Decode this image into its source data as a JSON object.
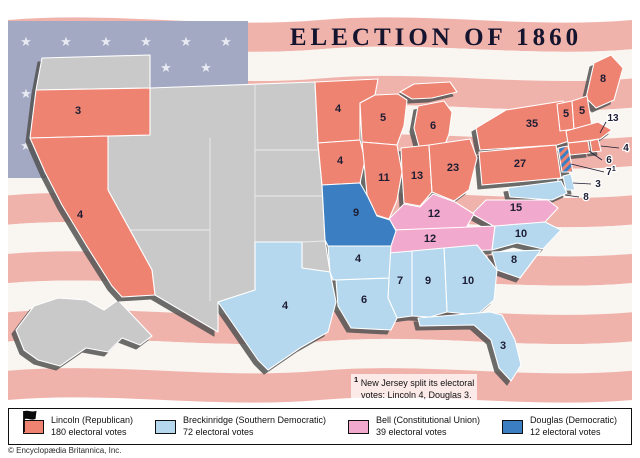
{
  "title": "ELECTION OF 1860",
  "colors": {
    "lincoln": "#ee8372",
    "breckinridge": "#b5d8ef",
    "bell": "#f2a9ce",
    "douglas": "#3b7fc2",
    "territory": "#c9c9c9",
    "flag_red": "#f0b3ab",
    "flag_white": "#f9f5f0",
    "canton": "#a3a9c3",
    "star": "#e9ebf3"
  },
  "map": {
    "states": {
      "oregon": {
        "party": "lincoln",
        "votes": 3
      },
      "california": {
        "party": "lincoln",
        "votes": 4
      },
      "minnesota": {
        "party": "lincoln",
        "votes": 4
      },
      "wisconsin": {
        "party": "lincoln",
        "votes": 5
      },
      "michigan": {
        "party": "lincoln",
        "votes": 6
      },
      "iowa": {
        "party": "lincoln",
        "votes": 4
      },
      "illinois": {
        "party": "lincoln",
        "votes": 11
      },
      "indiana": {
        "party": "lincoln",
        "votes": 13
      },
      "ohio": {
        "party": "lincoln",
        "votes": 23
      },
      "pennsylvania": {
        "party": "lincoln",
        "votes": 27
      },
      "new_york": {
        "party": "lincoln",
        "votes": 35
      },
      "maine": {
        "party": "lincoln",
        "votes": 8
      },
      "vermont": {
        "party": "lincoln",
        "votes": 5
      },
      "new_hampshire": {
        "party": "lincoln",
        "votes": 5
      },
      "massachusetts": {
        "party": "lincoln",
        "votes": 13
      },
      "rhode_island": {
        "party": "lincoln",
        "votes": 4
      },
      "connecticut": {
        "party": "lincoln",
        "votes": 6
      },
      "new_jersey": {
        "party": "split",
        "votes": 7,
        "note_ref": "1"
      },
      "delaware": {
        "party": "breckinridge",
        "votes": 3
      },
      "maryland": {
        "party": "breckinridge",
        "votes": 8
      },
      "virginia": {
        "party": "bell",
        "votes": 15
      },
      "kentucky": {
        "party": "bell",
        "votes": 12
      },
      "tennessee": {
        "party": "bell",
        "votes": 12
      },
      "missouri": {
        "party": "douglas",
        "votes": 9
      },
      "arkansas": {
        "party": "breckinridge",
        "votes": 4
      },
      "louisiana": {
        "party": "breckinridge",
        "votes": 6
      },
      "texas": {
        "party": "breckinridge",
        "votes": 4
      },
      "mississippi": {
        "party": "breckinridge",
        "votes": 7
      },
      "alabama": {
        "party": "breckinridge",
        "votes": 9
      },
      "georgia": {
        "party": "breckinridge",
        "votes": 10
      },
      "florida": {
        "party": "breckinridge",
        "votes": 3
      },
      "south_carolina": {
        "party": "breckinridge",
        "votes": 8
      },
      "north_carolina": {
        "party": "breckinridge",
        "votes": 10
      }
    }
  },
  "footnote": {
    "ref": "1",
    "line1": "New Jersey split its electoral",
    "line2": "votes: Lincoln 4, Douglas 3."
  },
  "legend": {
    "items": [
      {
        "candidate": "Lincoln (Republican)",
        "votes": "180 electoral votes",
        "party": "lincoln",
        "winner": true
      },
      {
        "candidate": "Breckinridge (Southern Democratic)",
        "votes": "72 electoral votes",
        "party": "breckinridge"
      },
      {
        "candidate": "Bell (Constitutional Union)",
        "votes": "39 electoral votes",
        "party": "bell"
      },
      {
        "candidate": "Douglas (Democratic)",
        "votes": "12 electoral votes",
        "party": "douglas"
      }
    ]
  },
  "copyright": "© Encyclopædia Britannica, Inc."
}
